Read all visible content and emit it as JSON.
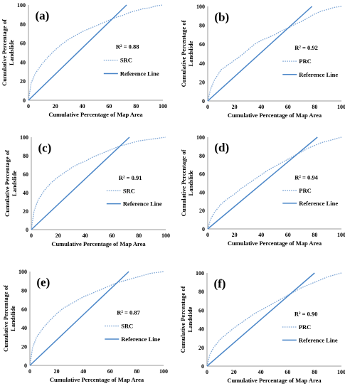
{
  "figure": {
    "x_axis_title": "Cumulative Percentage of Map Area",
    "y_axis_title_line1": "Cumulative Percentage of",
    "y_axis_title_line2": "Landslide",
    "reference_label": "Reference Line",
    "colors": {
      "curve": "#7fa7d6",
      "reference": "#4a86c8",
      "axis": "#9a9a9a"
    }
  },
  "chart_data": [
    {
      "type": "line",
      "panel": "(a)",
      "r2_label": "R² = 0.88",
      "curve_label": "SRC",
      "xlim": [
        0,
        100
      ],
      "ylim": [
        0,
        100
      ],
      "xticks": [
        0,
        20,
        40,
        60,
        80,
        100
      ],
      "yticks": [
        0,
        20,
        40,
        60,
        80,
        100
      ],
      "series": [
        {
          "name": "SRC",
          "style": "dotted",
          "x": [
            0,
            2,
            5,
            10,
            15,
            20,
            25,
            30,
            35,
            40,
            45,
            50,
            55,
            60,
            65,
            70,
            75,
            80,
            85,
            90,
            95,
            100
          ],
          "y": [
            0,
            18,
            28,
            38,
            46,
            53,
            59,
            64,
            68,
            72,
            75,
            78,
            81,
            84,
            87,
            89,
            92,
            94,
            96,
            97,
            99,
            100
          ]
        },
        {
          "name": "Reference Line",
          "style": "solid",
          "x": [
            0,
            73
          ],
          "y": [
            0,
            100
          ]
        }
      ]
    },
    {
      "type": "line",
      "panel": "(b)",
      "r2_label": "R² = 0.92",
      "curve_label": "PRC",
      "xlim": [
        0,
        100
      ],
      "ylim": [
        0,
        100
      ],
      "xticks": [
        0,
        20,
        40,
        60,
        80,
        100
      ],
      "yticks": [
        0,
        20,
        40,
        60,
        80,
        100
      ],
      "series": [
        {
          "name": "PRC",
          "style": "dotted",
          "x": [
            0,
            2,
            5,
            10,
            15,
            20,
            25,
            30,
            35,
            40,
            45,
            50,
            55,
            60,
            65,
            70,
            75,
            80,
            85,
            90,
            95,
            100
          ],
          "y": [
            0,
            12,
            22,
            33,
            38,
            43,
            48,
            54,
            60,
            64,
            67,
            70,
            74,
            77,
            81,
            84,
            88,
            92,
            95,
            97,
            99,
            100
          ]
        },
        {
          "name": "Reference Line",
          "style": "solid",
          "x": [
            0,
            78
          ],
          "y": [
            0,
            100
          ]
        }
      ]
    },
    {
      "type": "line",
      "panel": "(c)",
      "r2_label": "R² = 0.91",
      "curve_label": "SRC",
      "xlim": [
        0,
        100
      ],
      "ylim": [
        0,
        100
      ],
      "xticks": [
        0,
        20,
        40,
        60,
        80,
        100
      ],
      "yticks": [
        0,
        20,
        40,
        60,
        80,
        100
      ],
      "series": [
        {
          "name": "SRC",
          "style": "dotted",
          "x": [
            0,
            2,
            5,
            10,
            15,
            20,
            25,
            30,
            35,
            40,
            45,
            50,
            55,
            60,
            65,
            70,
            75,
            80,
            85,
            90,
            95,
            100
          ],
          "y": [
            0,
            20,
            32,
            43,
            51,
            57,
            62,
            67,
            71,
            74,
            78,
            81,
            84,
            87,
            90,
            92,
            94,
            96,
            97,
            98,
            99,
            100
          ]
        },
        {
          "name": "Reference Line",
          "style": "solid",
          "x": [
            0,
            73
          ],
          "y": [
            0,
            100
          ]
        }
      ]
    },
    {
      "type": "line",
      "panel": "(d)",
      "r2_label": "R² = 0.94",
      "curve_label": "PRC",
      "xlim": [
        0,
        100
      ],
      "ylim": [
        0,
        100
      ],
      "xticks": [
        0,
        20,
        40,
        60,
        80,
        100
      ],
      "yticks": [
        0,
        20,
        40,
        60,
        80,
        100
      ],
      "series": [
        {
          "name": "PRC",
          "style": "dotted",
          "x": [
            0,
            2,
            5,
            10,
            15,
            20,
            25,
            30,
            35,
            40,
            45,
            50,
            55,
            60,
            65,
            70,
            75,
            80,
            85,
            90,
            95,
            100
          ],
          "y": [
            0,
            10,
            18,
            27,
            33,
            38,
            44,
            49,
            54,
            59,
            64,
            68,
            72,
            76,
            80,
            84,
            88,
            91,
            94,
            96,
            98,
            100
          ]
        },
        {
          "name": "Reference Line",
          "style": "solid",
          "x": [
            0,
            82
          ],
          "y": [
            0,
            100
          ]
        }
      ]
    },
    {
      "type": "line",
      "panel": "(e)",
      "r2_label": "R² = 0.87",
      "curve_label": "SRC",
      "xlim": [
        0,
        100
      ],
      "ylim": [
        0,
        100
      ],
      "xticks": [
        0,
        20,
        40,
        60,
        80,
        100
      ],
      "yticks": [
        0,
        20,
        40,
        60,
        80,
        100
      ],
      "series": [
        {
          "name": "SRC",
          "style": "dotted",
          "x": [
            0,
            2,
            5,
            10,
            15,
            20,
            25,
            30,
            35,
            40,
            45,
            50,
            55,
            60,
            65,
            70,
            75,
            80,
            85,
            90,
            95,
            100
          ],
          "y": [
            0,
            19,
            30,
            40,
            48,
            55,
            61,
            65,
            69,
            73,
            76,
            79,
            82,
            85,
            88,
            90,
            92,
            94,
            96,
            98,
            99,
            100
          ]
        },
        {
          "name": "Reference Line",
          "style": "solid",
          "x": [
            0,
            74
          ],
          "y": [
            0,
            100
          ]
        }
      ]
    },
    {
      "type": "line",
      "panel": "(f)",
      "r2_label": "R² = 0.90",
      "curve_label": "PRC",
      "xlim": [
        0,
        100
      ],
      "ylim": [
        0,
        100
      ],
      "xticks": [
        0,
        20,
        40,
        60,
        80,
        100
      ],
      "yticks": [
        0,
        20,
        40,
        60,
        80,
        100
      ],
      "series": [
        {
          "name": "PRC",
          "style": "dotted",
          "x": [
            0,
            2,
            5,
            10,
            15,
            20,
            25,
            30,
            35,
            40,
            45,
            50,
            55,
            60,
            65,
            70,
            75,
            80,
            85,
            90,
            95,
            100
          ],
          "y": [
            0,
            12,
            20,
            29,
            35,
            41,
            46,
            51,
            56,
            60,
            64,
            68,
            72,
            76,
            80,
            84,
            87,
            90,
            93,
            96,
            98,
            100
          ]
        },
        {
          "name": "Reference Line",
          "style": "solid",
          "x": [
            0,
            80
          ],
          "y": [
            0,
            100
          ]
        }
      ]
    }
  ]
}
